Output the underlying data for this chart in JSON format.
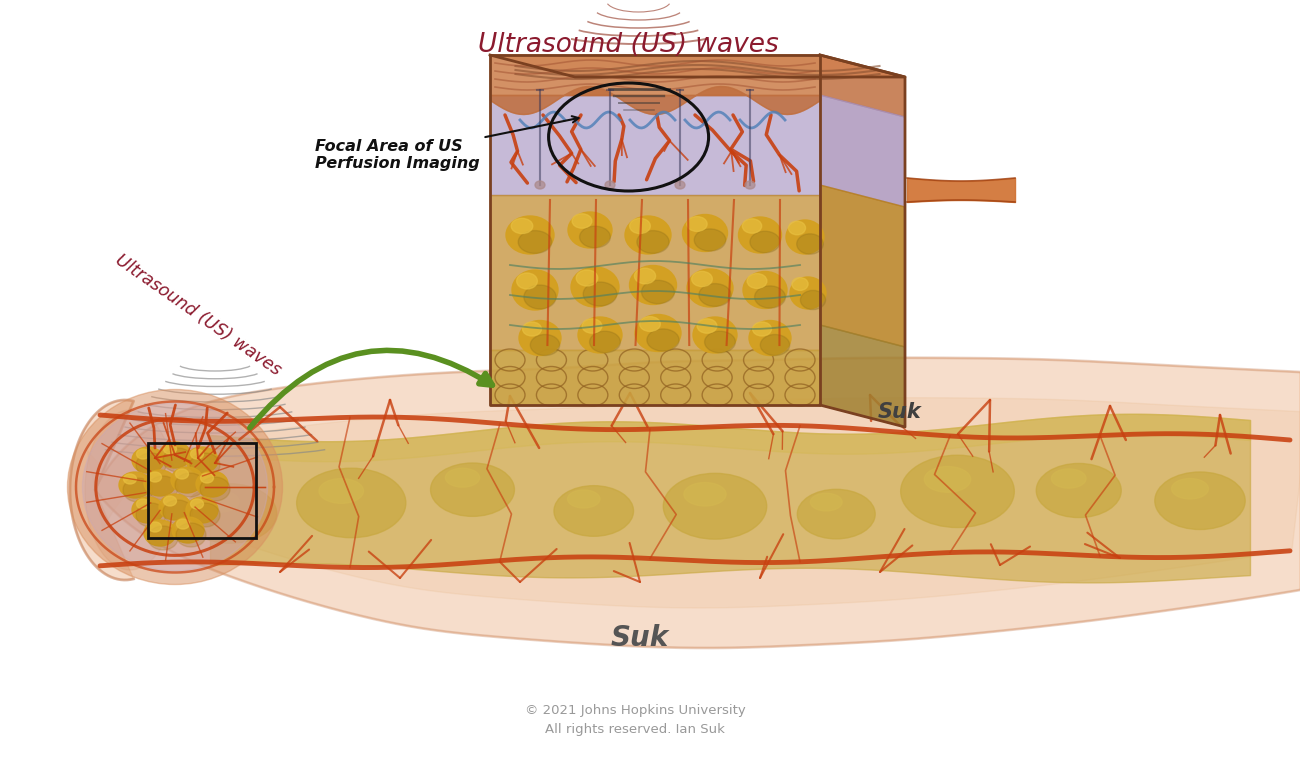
{
  "bg_color": "#ffffff",
  "title_us_waves_top": "Ultrasound (US) waves",
  "title_us_waves_left": "Ultrasound (US) waves",
  "label_focal": "Focal Area of US\nPerfusion Imaging",
  "label_focal_color": "#111111",
  "copyright": "© 2021 Johns Hopkins University\nAll rights reserved. Ian Suk",
  "copyright_color": "#999999",
  "us_waves_color": "#8b1a2e",
  "vessel_red": "#c84010",
  "vessel_red2": "#b83808",
  "vessel_blue": "#5080b8",
  "tissue_yellow": "#d4a020",
  "tissue_yellow2": "#e8c040",
  "tissue_orange": "#c88020",
  "bone_color": "#c8a840",
  "bone_color2": "#d4b850",
  "skin_color": "#d88858",
  "skin_color2": "#c07040",
  "dermis_lavender": "#b0a0c8",
  "dermis_lavender2": "#c8b8e0",
  "finger_skin": "#e8a878",
  "finger_skin_alpha": 0.45,
  "finger_outline": "#c07850",
  "green_arrow": "#5a9020"
}
